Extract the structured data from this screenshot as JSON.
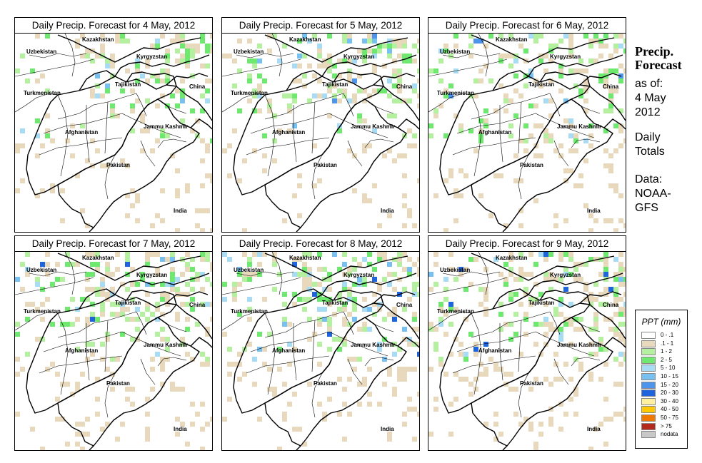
{
  "panels": [
    {
      "title": "Daily Precip. Forecast for  4 May, 2012",
      "day": 4
    },
    {
      "title": "Daily Precip. Forecast for  5 May, 2012",
      "day": 5
    },
    {
      "title": "Daily Precip. Forecast for  6 May, 2012",
      "day": 6
    },
    {
      "title": "Daily Precip. Forecast for  7 May, 2012",
      "day": 7
    },
    {
      "title": "Daily Precip. Forecast for  8 May, 2012",
      "day": 8
    },
    {
      "title": "Daily Precip. Forecast for  9 May, 2012",
      "day": 9
    }
  ],
  "map_labels": {
    "kazakhstan": "Kazakhstan",
    "uzbekistan": "Uzbekistan",
    "kyrgyzstan": "Kyrgyzstan",
    "tajikistan": "Tajikistan",
    "turkmenistan": "Turkmenistan",
    "china": "China",
    "afghanistan": "Afghanistan",
    "jammu_kashmir": "Jammu Kashmir",
    "pakistan": "Pakistan",
    "india": "India"
  },
  "sidebar": {
    "title_line1": "Precip.",
    "title_line2": "Forecast",
    "as_of": "as of:",
    "date_line1": "4 May",
    "date_line2": "2012",
    "daily_line1": "Daily",
    "daily_line2": "Totals",
    "data_line1": "Data:",
    "data_line2": "NOAA-",
    "data_line3": "GFS"
  },
  "legend": {
    "title": "PPT (mm)",
    "items": [
      {
        "label": "0 - .1",
        "color": "#ffffff"
      },
      {
        "label": ".1 - 1",
        "color": "#e8d9bc"
      },
      {
        "label": "1 - 2",
        "color": "#b4f0a0"
      },
      {
        "label": "2 - 5",
        "color": "#6ee86e"
      },
      {
        "label": "5 - 10",
        "color": "#a8dcf4"
      },
      {
        "label": "10 - 15",
        "color": "#78c0f0"
      },
      {
        "label": "15 - 20",
        "color": "#4c94ec"
      },
      {
        "label": "20 - 30",
        "color": "#1e64dc"
      },
      {
        "label": "30 - 40",
        "color": "#fff0a0"
      },
      {
        "label": "40 - 50",
        "color": "#ffc800"
      },
      {
        "label": "50 - 75",
        "color": "#f07800"
      },
      {
        "label": "> 75",
        "color": "#b42a1e"
      },
      {
        "label": "nodata",
        "color": "#c8c8c8"
      }
    ]
  }
}
